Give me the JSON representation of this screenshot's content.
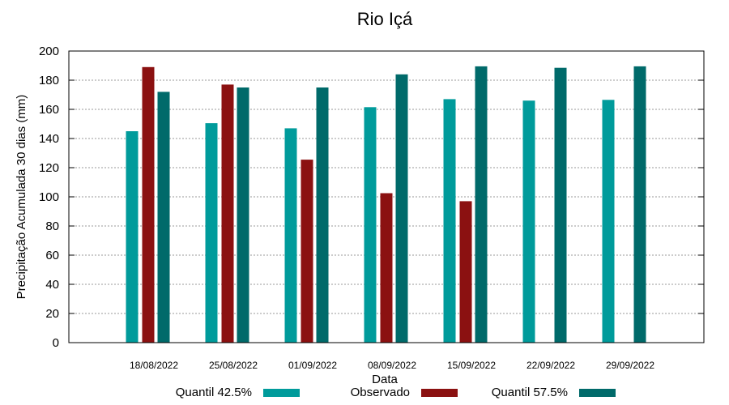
{
  "chart_data": {
    "type": "bar",
    "title": "Rio Içá",
    "xlabel": "Data",
    "ylabel": "Precipitação Acumulada 30 dias (mm)",
    "ylim": [
      0,
      200
    ],
    "yticks": [
      0,
      20,
      40,
      60,
      80,
      100,
      120,
      140,
      160,
      180,
      200
    ],
    "grid": true,
    "legend_position": "bottom",
    "categories": [
      "18/08/2022",
      "25/08/2022",
      "01/09/2022",
      "08/09/2022",
      "15/09/2022",
      "22/09/2022",
      "29/09/2022"
    ],
    "series": [
      {
        "name": "Quantil 42.5%",
        "color": "#009b9b",
        "values": [
          145,
          150.5,
          147,
          161.5,
          167,
          166,
          166.5
        ]
      },
      {
        "name": "Observado",
        "color": "#8b1111",
        "values": [
          189,
          177,
          125.5,
          102.5,
          97,
          null,
          null
        ]
      },
      {
        "name": "Quantil 57.5%",
        "color": "#006a6a",
        "values": [
          172,
          175,
          175,
          184,
          189.5,
          188.5,
          189.5
        ]
      }
    ]
  }
}
